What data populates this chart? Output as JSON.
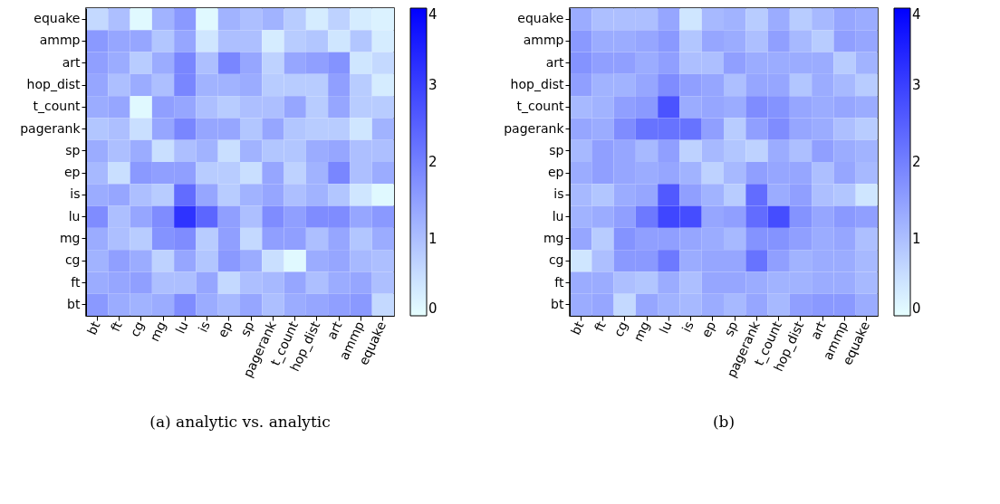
{
  "chart_data": [
    {
      "type": "heatmap",
      "annotations": [
        "(a) analytic vs. analytic"
      ],
      "categories": [
        "bt",
        "ft",
        "cg",
        "mg",
        "lu",
        "is",
        "ep",
        "sp",
        "pagerank",
        "t_count",
        "hop_dist",
        "art",
        "ammp",
        "equake"
      ],
      "y_categories": [
        "equake",
        "ammp",
        "art",
        "hop_dist",
        "t_count",
        "pagerank",
        "sp",
        "ep",
        "is",
        "lu",
        "mg",
        "cg",
        "ft",
        "bt"
      ],
      "clim": [
        0,
        4
      ],
      "cticks": [
        0,
        1,
        2,
        3,
        4
      ],
      "cells": [
        [
          0.6,
          1.0,
          0.1,
          1.2,
          1.6,
          0.1,
          1.2,
          1.0,
          1.2,
          0.8,
          0.3,
          0.7,
          0.3,
          0.2
        ],
        [
          1.6,
          1.4,
          1.4,
          0.9,
          1.4,
          0.4,
          1.0,
          1.0,
          0.3,
          0.8,
          0.9,
          0.4,
          0.9,
          0.3
        ],
        [
          1.5,
          1.3,
          0.8,
          1.3,
          1.9,
          1.0,
          1.9,
          1.4,
          0.7,
          1.4,
          1.5,
          1.7,
          0.4,
          0.6
        ],
        [
          1.4,
          1.0,
          1.3,
          1.0,
          1.9,
          1.2,
          1.2,
          1.3,
          0.8,
          0.8,
          0.8,
          1.5,
          0.8,
          0.3
        ],
        [
          1.3,
          1.4,
          0.1,
          1.5,
          1.4,
          1.0,
          0.8,
          1.0,
          1.0,
          1.4,
          0.8,
          1.4,
          0.8,
          0.8
        ],
        [
          0.9,
          1.0,
          0.5,
          1.4,
          1.9,
          1.4,
          1.4,
          0.9,
          1.4,
          0.9,
          0.8,
          0.8,
          0.4,
          1.2
        ],
        [
          1.3,
          1.0,
          1.3,
          0.5,
          1.0,
          1.2,
          0.5,
          1.2,
          0.9,
          0.9,
          1.3,
          1.4,
          1.0,
          1.0
        ],
        [
          1.1,
          0.5,
          1.6,
          1.5,
          1.5,
          0.8,
          0.8,
          0.5,
          1.4,
          0.7,
          1.2,
          1.9,
          1.0,
          1.3
        ],
        [
          1.3,
          1.4,
          1.0,
          0.8,
          2.3,
          1.4,
          0.8,
          1.2,
          1.4,
          1.0,
          1.2,
          0.9,
          0.4,
          0.1
        ],
        [
          1.8,
          1.0,
          1.4,
          1.8,
          3.2,
          2.4,
          1.5,
          1.0,
          1.8,
          1.5,
          1.8,
          1.8,
          1.4,
          1.6
        ],
        [
          1.3,
          1.0,
          0.8,
          1.7,
          1.8,
          0.8,
          1.5,
          0.6,
          1.5,
          1.5,
          1.0,
          1.4,
          0.9,
          1.3
        ],
        [
          1.2,
          1.5,
          1.3,
          0.7,
          1.4,
          0.9,
          1.6,
          1.3,
          0.5,
          0.1,
          1.3,
          1.4,
          1.1,
          1.0
        ],
        [
          1.3,
          1.4,
          1.5,
          1.0,
          1.0,
          1.4,
          0.6,
          1.0,
          1.1,
          1.4,
          1.0,
          1.3,
          1.4,
          1.0
        ],
        [
          1.6,
          1.3,
          1.2,
          1.3,
          1.8,
          1.3,
          1.1,
          1.4,
          1.0,
          1.3,
          1.4,
          1.5,
          1.6,
          0.6
        ]
      ]
    },
    {
      "type": "heatmap",
      "annotations": [
        "(b)"
      ],
      "categories": [
        "bt",
        "ft",
        "cg",
        "mg",
        "lu",
        "is",
        "ep",
        "sp",
        "pagerank",
        "t_count",
        "hop_dist",
        "art",
        "ammp",
        "equake"
      ],
      "y_categories": [
        "equake",
        "ammp",
        "art",
        "hop_dist",
        "t_count",
        "pagerank",
        "sp",
        "ep",
        "is",
        "lu",
        "mg",
        "cg",
        "ft",
        "bt"
      ],
      "clim": [
        0,
        4
      ],
      "cticks": [
        0,
        1,
        2,
        3,
        4
      ],
      "cells": [
        [
          1.3,
          1.0,
          1.0,
          1.0,
          1.4,
          0.4,
          1.1,
          1.2,
          0.8,
          1.3,
          0.8,
          1.1,
          1.4,
          1.3
        ],
        [
          1.6,
          1.3,
          1.3,
          1.4,
          1.6,
          0.9,
          1.4,
          1.3,
          1.0,
          1.5,
          1.1,
          0.8,
          1.5,
          1.4
        ],
        [
          1.7,
          1.5,
          1.5,
          1.3,
          1.5,
          1.0,
          1.0,
          1.5,
          1.3,
          1.3,
          1.3,
          1.3,
          0.8,
          1.2
        ],
        [
          1.5,
          1.2,
          1.2,
          1.4,
          1.8,
          1.5,
          1.4,
          1.0,
          1.4,
          1.4,
          0.9,
          1.3,
          1.1,
          0.8
        ],
        [
          1.1,
          1.2,
          1.5,
          1.6,
          2.7,
          1.3,
          1.4,
          1.3,
          1.8,
          1.7,
          1.4,
          1.3,
          1.4,
          1.3
        ],
        [
          1.4,
          1.3,
          1.8,
          2.2,
          2.2,
          2.2,
          1.5,
          0.8,
          1.5,
          1.8,
          1.4,
          1.3,
          1.0,
          0.8
        ],
        [
          1.1,
          1.5,
          1.4,
          1.1,
          1.5,
          0.7,
          1.1,
          0.9,
          0.7,
          1.3,
          1.0,
          1.5,
          1.3,
          1.2
        ],
        [
          1.3,
          1.5,
          1.4,
          1.3,
          1.4,
          1.2,
          0.7,
          1.1,
          1.5,
          1.4,
          1.4,
          1.0,
          1.4,
          1.1
        ],
        [
          1.1,
          0.9,
          1.3,
          1.4,
          2.6,
          1.5,
          1.2,
          0.8,
          2.3,
          1.3,
          1.5,
          1.0,
          0.9,
          0.4
        ],
        [
          1.2,
          1.3,
          1.5,
          2.1,
          2.9,
          2.8,
          1.4,
          1.5,
          2.3,
          2.8,
          1.7,
          1.4,
          1.6,
          1.5
        ],
        [
          1.4,
          0.8,
          1.7,
          1.5,
          1.5,
          1.4,
          1.3,
          1.1,
          1.7,
          1.7,
          1.5,
          1.3,
          1.4,
          1.0
        ],
        [
          0.4,
          1.0,
          1.6,
          1.6,
          2.1,
          1.3,
          1.4,
          1.4,
          2.2,
          1.5,
          1.2,
          1.3,
          1.3,
          1.1
        ],
        [
          1.3,
          1.3,
          1.0,
          0.9,
          1.3,
          1.0,
          1.4,
          1.4,
          1.3,
          1.2,
          1.2,
          1.3,
          1.3,
          1.1
        ],
        [
          1.3,
          1.4,
          0.6,
          1.4,
          1.2,
          1.1,
          1.3,
          1.1,
          1.4,
          1.1,
          1.5,
          1.6,
          1.6,
          1.3
        ]
      ]
    }
  ]
}
